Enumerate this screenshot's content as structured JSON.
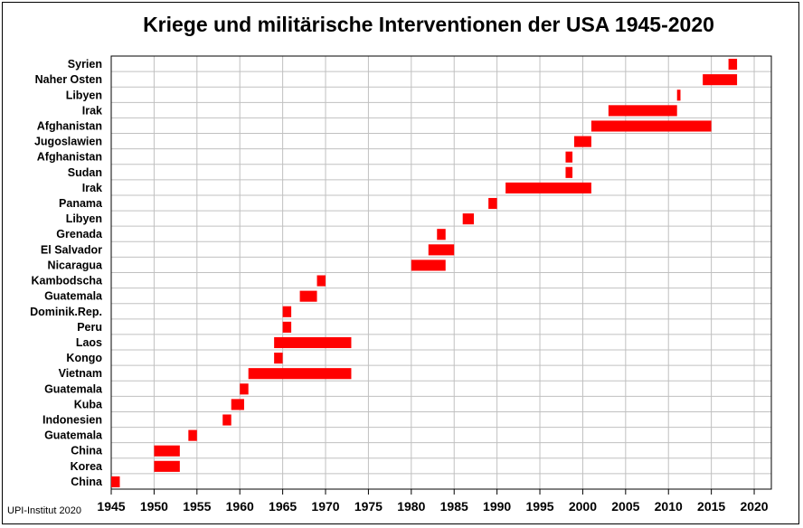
{
  "title": "Kriege und militärische Interventionen der USA 1945-2020",
  "source": "UPI-Institut 2020",
  "colors": {
    "bar": "#ff0000",
    "grid": "#c0c0c0",
    "axis": "#000000"
  },
  "chart_data": {
    "type": "bar",
    "orientation": "horizontal-range",
    "title": "Kriege und militärische Interventionen der USA 1945-2020",
    "xlim": [
      1945,
      2022
    ],
    "xticks": [
      1945,
      1950,
      1955,
      1960,
      1965,
      1970,
      1975,
      1980,
      1985,
      1990,
      1995,
      2000,
      2005,
      2010,
      2015,
      2020
    ],
    "grid": true,
    "categories": [
      "China",
      "Korea",
      "China",
      "Guatemala",
      "Indonesien",
      "Kuba",
      "Guatemala",
      "Vietnam",
      "Kongo",
      "Laos",
      "Peru",
      "Dominik.Rep.",
      "Guatemala",
      "Kambodscha",
      "Nicaragua",
      "El Salvador",
      "Grenada",
      "Libyen",
      "Panama",
      "Irak",
      "Sudan",
      "Afghanistan",
      "Jugoslawien",
      "Afghanistan",
      "Irak",
      "Libyen",
      "Naher Osten",
      "Syrien"
    ],
    "start": [
      1945,
      1950,
      1950,
      1954,
      1958,
      1959,
      1960,
      1961,
      1964,
      1964,
      1965,
      1965,
      1967,
      1969,
      1980,
      1982,
      1983,
      1986,
      1989,
      1991,
      1998,
      1998,
      1999,
      2001,
      2003,
      2011,
      2014,
      2017
    ],
    "end": [
      1946,
      1953,
      1953,
      1955,
      1959,
      1960.5,
      1961,
      1973,
      1965,
      1973,
      1966,
      1966,
      1969,
      1970,
      1984,
      1985,
      1984,
      1987.3,
      1990,
      2001,
      1998.8,
      1998.8,
      2001,
      2015,
      2011,
      2011.4,
      2018,
      2018
    ]
  }
}
